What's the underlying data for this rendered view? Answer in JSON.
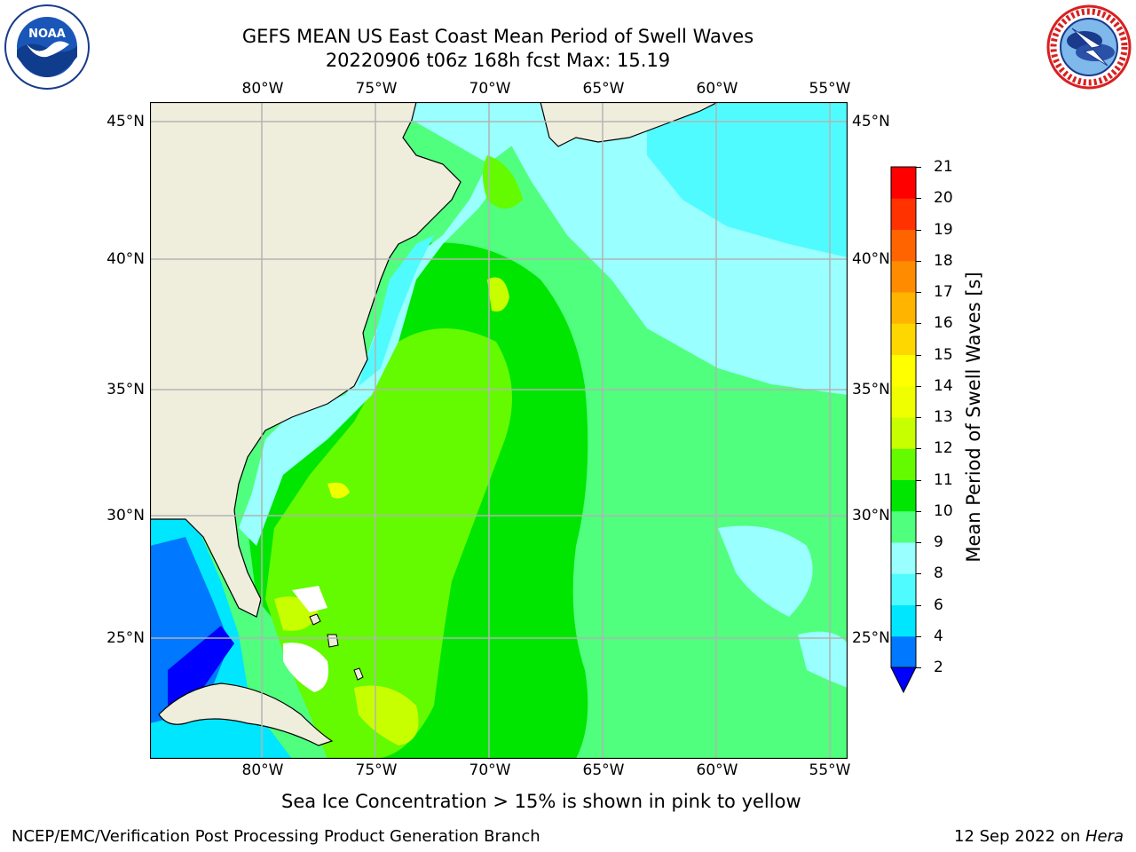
{
  "title": {
    "line1": "GEFS MEAN US East Coast Mean Period of Swell Waves",
    "line2": "20220906 t06z 168h fcst   Max: 15.19"
  },
  "logos": {
    "left": "NOAA",
    "right": "NATIONAL WEATHER SERVICE"
  },
  "map": {
    "type": "filled-contour-map",
    "projection": "plate carree",
    "lon_range": [
      -85,
      -54.3
    ],
    "lat_range": [
      20.5,
      46
    ],
    "lon_ticks": [
      "80°W",
      "75°W",
      "70°W",
      "65°W",
      "60°W",
      "55°W"
    ],
    "lat_ticks": [
      "45°N",
      "40°N",
      "35°N",
      "30°N",
      "25°N"
    ],
    "gridlines": true,
    "land_color": "#efeedd",
    "field_summary": [
      {
        "region": "Gulf Stream band off Carolinas to Bahamas",
        "period_s": "11-13"
      },
      {
        "region": "open Atlantic east of 65°W",
        "period_s": "9-10"
      },
      {
        "region": "Gulf of Maine / Nova Scotia shelf",
        "period_s": "6-8"
      },
      {
        "region": "Gulf of Mexico / nearshore",
        "period_s": "2-6"
      }
    ]
  },
  "colorbar": {
    "label": "Mean Period of Swell Waves [s]",
    "ticks": [
      "21",
      "20",
      "19",
      "18",
      "17",
      "16",
      "15",
      "14",
      "13",
      "12",
      "11",
      "10",
      "9",
      "8",
      "6",
      "4",
      "2"
    ],
    "colors": [
      "#0000ff",
      "#0078ff",
      "#00e6ff",
      "#50fbff",
      "#99ffff",
      "#50ff7e",
      "#00e600",
      "#64fa00",
      "#c8ff00",
      "#f0ff00",
      "#ffff00",
      "#ffd700",
      "#ffb400",
      "#ff8c00",
      "#ff6400",
      "#ff3200",
      "#ff0000"
    ],
    "extend": "min"
  },
  "caption": "Sea Ice Concentration > 15% is shown in pink to yellow",
  "footer": {
    "left": "NCEP/EMC/Verification Post Processing Product Generation Branch",
    "date": "12 Sep 2022 on ",
    "machine": "Hera"
  }
}
